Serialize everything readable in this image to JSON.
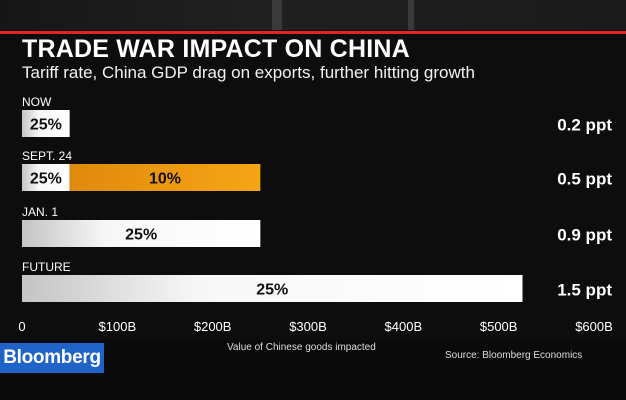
{
  "title": "TRADE WAR IMPACT ON CHINA",
  "subtitle": "Tariff rate, China GDP drag on exports, further hitting growth",
  "brand": "Bloomberg",
  "source": "Source: Bloomberg Economics",
  "colors": {
    "accent": "#e0271f",
    "bar_white": "#ffffff",
    "bar_orange": "#f29a12",
    "brand_blue": "#1f63c8"
  },
  "chart_data": {
    "type": "bar",
    "orientation": "horizontal",
    "stacked": true,
    "title": "TRADE WAR IMPACT ON CHINA",
    "subtitle": "Tariff rate, China GDP drag on exports, further hitting growth",
    "xlabel": "Value of Chinese goods impacted",
    "xlim": [
      0,
      600
    ],
    "xticks": [
      "0",
      "$100B",
      "$200B",
      "$300B",
      "$400B",
      "$500B",
      "$600B"
    ],
    "categories": [
      "NOW",
      "SEPT. 24",
      "JAN. 1",
      "FUTURE"
    ],
    "rows": [
      {
        "label": "NOW",
        "gdp_drag": "0.2 ppt",
        "segments": [
          {
            "tariff": "25%",
            "value": 50,
            "color": "white"
          }
        ]
      },
      {
        "label": "SEPT. 24",
        "gdp_drag": "0.5 ppt",
        "segments": [
          {
            "tariff": "25%",
            "value": 50,
            "color": "white"
          },
          {
            "tariff": "10%",
            "value": 200,
            "color": "orange"
          }
        ]
      },
      {
        "label": "JAN. 1",
        "gdp_drag": "0.9 ppt",
        "segments": [
          {
            "tariff": "25%",
            "value": 250,
            "color": "white"
          }
        ]
      },
      {
        "label": "FUTURE",
        "gdp_drag": "1.5 ppt",
        "segments": [
          {
            "tariff": "25%",
            "value": 525,
            "color": "white"
          }
        ]
      }
    ]
  }
}
